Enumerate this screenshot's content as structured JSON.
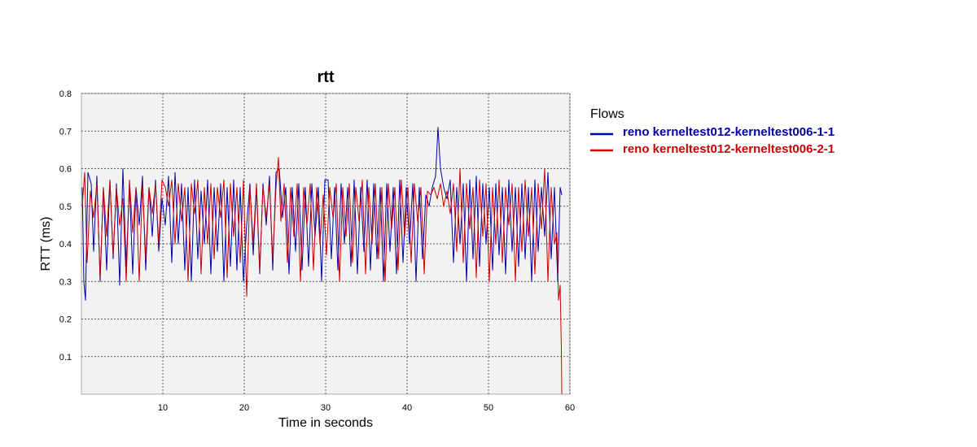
{
  "chart_data": {
    "type": "line",
    "title": "rtt",
    "xlabel": "Time in seconds",
    "ylabel": "RTT (ms)",
    "xlim": [
      0,
      60
    ],
    "ylim": [
      0,
      0.8
    ],
    "x_ticks": [
      10,
      20,
      30,
      40,
      50,
      60
    ],
    "y_ticks": [
      0.1,
      0.2,
      0.3,
      0.4,
      0.5,
      0.6,
      0.7,
      0.8
    ],
    "grid": true,
    "legend": {
      "title": "Flows",
      "placement": "right"
    },
    "series": [
      {
        "name": "reno kerneltest012-kerneltest006-1-1",
        "color": "#0000aa",
        "points": [
          [
            0.1,
            0.55
          ],
          [
            0.3,
            0.3
          ],
          [
            0.5,
            0.25
          ],
          [
            0.8,
            0.59
          ],
          [
            1.2,
            0.56
          ],
          [
            1.5,
            0.38
          ],
          [
            1.9,
            0.58
          ],
          [
            2.3,
            0.3
          ],
          [
            2.7,
            0.55
          ],
          [
            3.1,
            0.33
          ],
          [
            3.5,
            0.57
          ],
          [
            3.9,
            0.36
          ],
          [
            4.3,
            0.56
          ],
          [
            4.7,
            0.29
          ],
          [
            5.1,
            0.6
          ],
          [
            5.5,
            0.34
          ],
          [
            5.9,
            0.56
          ],
          [
            6.3,
            0.32
          ],
          [
            6.7,
            0.55
          ],
          [
            7.1,
            0.45
          ],
          [
            7.5,
            0.58
          ],
          [
            7.9,
            0.33
          ],
          [
            8.3,
            0.55
          ],
          [
            8.7,
            0.42
          ],
          [
            9.1,
            0.57
          ],
          [
            9.5,
            0.38
          ],
          [
            9.9,
            0.52
          ],
          [
            10.3,
            0.45
          ],
          [
            10.7,
            0.58
          ],
          [
            11.1,
            0.35
          ],
          [
            11.5,
            0.59
          ],
          [
            11.9,
            0.4
          ],
          [
            12.3,
            0.56
          ],
          [
            12.7,
            0.33
          ],
          [
            13.1,
            0.55
          ],
          [
            13.5,
            0.3
          ],
          [
            13.9,
            0.57
          ],
          [
            14.3,
            0.36
          ],
          [
            14.7,
            0.54
          ],
          [
            15.1,
            0.4
          ],
          [
            15.5,
            0.57
          ],
          [
            15.9,
            0.32
          ],
          [
            16.3,
            0.55
          ],
          [
            16.7,
            0.38
          ],
          [
            17.1,
            0.56
          ],
          [
            17.5,
            0.3
          ],
          [
            17.9,
            0.55
          ],
          [
            18.3,
            0.34
          ],
          [
            18.7,
            0.57
          ],
          [
            19.1,
            0.33
          ],
          [
            19.5,
            0.55
          ],
          [
            19.9,
            0.3
          ],
          [
            20.3,
            0.45
          ],
          [
            20.7,
            0.56
          ],
          [
            21.1,
            0.37
          ],
          [
            21.5,
            0.55
          ],
          [
            21.9,
            0.32
          ],
          [
            22.3,
            0.56
          ],
          [
            22.7,
            0.45
          ],
          [
            23.1,
            0.58
          ],
          [
            23.5,
            0.33
          ],
          [
            23.9,
            0.59
          ],
          [
            24.3,
            0.6
          ],
          [
            24.7,
            0.47
          ],
          [
            25.1,
            0.55
          ],
          [
            25.5,
            0.32
          ],
          [
            25.9,
            0.55
          ],
          [
            26.3,
            0.38
          ],
          [
            26.7,
            0.56
          ],
          [
            27.1,
            0.33
          ],
          [
            27.5,
            0.55
          ],
          [
            27.9,
            0.34
          ],
          [
            28.3,
            0.56
          ],
          [
            28.7,
            0.42
          ],
          [
            29.1,
            0.55
          ],
          [
            29.5,
            0.3
          ],
          [
            29.9,
            0.57
          ],
          [
            30.3,
            0.57
          ],
          [
            30.7,
            0.36
          ],
          [
            31.1,
            0.55
          ],
          [
            31.5,
            0.33
          ],
          [
            31.9,
            0.56
          ],
          [
            32.3,
            0.4
          ],
          [
            32.7,
            0.55
          ],
          [
            33.1,
            0.34
          ],
          [
            33.5,
            0.57
          ],
          [
            33.9,
            0.32
          ],
          [
            34.3,
            0.55
          ],
          [
            34.7,
            0.38
          ],
          [
            35.1,
            0.57
          ],
          [
            35.5,
            0.33
          ],
          [
            35.9,
            0.56
          ],
          [
            36.3,
            0.36
          ],
          [
            36.7,
            0.55
          ],
          [
            37.1,
            0.3
          ],
          [
            37.5,
            0.56
          ],
          [
            37.9,
            0.38
          ],
          [
            38.3,
            0.55
          ],
          [
            38.7,
            0.32
          ],
          [
            39.1,
            0.57
          ],
          [
            39.5,
            0.35
          ],
          [
            39.9,
            0.55
          ],
          [
            40.3,
            0.4
          ],
          [
            40.7,
            0.56
          ],
          [
            41.1,
            0.3
          ],
          [
            41.5,
            0.55
          ],
          [
            41.9,
            0.36
          ],
          [
            42.3,
            0.53
          ],
          [
            42.7,
            0.5
          ],
          [
            43.1,
            0.55
          ],
          [
            43.5,
            0.58
          ],
          [
            43.8,
            0.71
          ],
          [
            44.1,
            0.6
          ],
          [
            44.5,
            0.55
          ],
          [
            44.9,
            0.52
          ],
          [
            45.3,
            0.57
          ],
          [
            45.7,
            0.35
          ],
          [
            46.1,
            0.55
          ],
          [
            46.5,
            0.4
          ],
          [
            46.9,
            0.56
          ],
          [
            47.3,
            0.3
          ],
          [
            47.7,
            0.57
          ],
          [
            48.1,
            0.36
          ],
          [
            48.5,
            0.58
          ],
          [
            48.9,
            0.34
          ],
          [
            49.3,
            0.56
          ],
          [
            49.7,
            0.4
          ],
          [
            50.1,
            0.55
          ],
          [
            50.5,
            0.33
          ],
          [
            50.9,
            0.56
          ],
          [
            51.3,
            0.37
          ],
          [
            51.7,
            0.55
          ],
          [
            52.1,
            0.32
          ],
          [
            52.5,
            0.57
          ],
          [
            52.9,
            0.38
          ],
          [
            53.3,
            0.55
          ],
          [
            53.7,
            0.34
          ],
          [
            54.1,
            0.56
          ],
          [
            54.5,
            0.36
          ],
          [
            54.9,
            0.55
          ],
          [
            55.3,
            0.3
          ],
          [
            55.7,
            0.57
          ],
          [
            56.1,
            0.38
          ],
          [
            56.5,
            0.55
          ],
          [
            56.9,
            0.42
          ],
          [
            57.3,
            0.59
          ],
          [
            57.7,
            0.36
          ],
          [
            58.1,
            0.55
          ],
          [
            58.5,
            0.3
          ],
          [
            58.8,
            0.55
          ],
          [
            59.0,
            0.53
          ]
        ]
      },
      {
        "name": "reno kerneltest012-kerneltest006-2-1",
        "color": "#cc0000",
        "points": [
          [
            0.1,
            0.5
          ],
          [
            0.4,
            0.59
          ],
          [
            0.7,
            0.35
          ],
          [
            1.1,
            0.54
          ],
          [
            1.5,
            0.47
          ],
          [
            1.9,
            0.56
          ],
          [
            2.3,
            0.31
          ],
          [
            2.7,
            0.55
          ],
          [
            3.1,
            0.42
          ],
          [
            3.5,
            0.57
          ],
          [
            3.9,
            0.37
          ],
          [
            4.3,
            0.55
          ],
          [
            4.7,
            0.45
          ],
          [
            5.1,
            0.52
          ],
          [
            5.5,
            0.3
          ],
          [
            5.9,
            0.57
          ],
          [
            6.3,
            0.43
          ],
          [
            6.7,
            0.55
          ],
          [
            7.1,
            0.3
          ],
          [
            7.5,
            0.56
          ],
          [
            7.9,
            0.36
          ],
          [
            8.3,
            0.55
          ],
          [
            8.7,
            0.48
          ],
          [
            9.1,
            0.56
          ],
          [
            9.5,
            0.4
          ],
          [
            9.9,
            0.57
          ],
          [
            10.3,
            0.55
          ],
          [
            10.7,
            0.5
          ],
          [
            11.1,
            0.57
          ],
          [
            11.5,
            0.4
          ],
          [
            11.9,
            0.56
          ],
          [
            12.3,
            0.46
          ],
          [
            12.7,
            0.55
          ],
          [
            13.1,
            0.3
          ],
          [
            13.5,
            0.56
          ],
          [
            13.9,
            0.48
          ],
          [
            14.3,
            0.57
          ],
          [
            14.7,
            0.32
          ],
          [
            15.1,
            0.55
          ],
          [
            15.5,
            0.4
          ],
          [
            15.9,
            0.56
          ],
          [
            16.3,
            0.36
          ],
          [
            16.7,
            0.55
          ],
          [
            17.1,
            0.47
          ],
          [
            17.5,
            0.57
          ],
          [
            17.9,
            0.31
          ],
          [
            18.3,
            0.56
          ],
          [
            18.7,
            0.42
          ],
          [
            19.1,
            0.55
          ],
          [
            19.5,
            0.35
          ],
          [
            19.9,
            0.57
          ],
          [
            20.3,
            0.26
          ],
          [
            20.7,
            0.55
          ],
          [
            21.1,
            0.4
          ],
          [
            21.5,
            0.56
          ],
          [
            21.9,
            0.33
          ],
          [
            22.3,
            0.55
          ],
          [
            22.7,
            0.47
          ],
          [
            23.1,
            0.56
          ],
          [
            23.5,
            0.36
          ],
          [
            23.9,
            0.55
          ],
          [
            24.2,
            0.63
          ],
          [
            24.5,
            0.46
          ],
          [
            24.9,
            0.56
          ],
          [
            25.3,
            0.35
          ],
          [
            25.7,
            0.55
          ],
          [
            26.1,
            0.42
          ],
          [
            26.5,
            0.56
          ],
          [
            26.9,
            0.3
          ],
          [
            27.3,
            0.55
          ],
          [
            27.7,
            0.45
          ],
          [
            28.1,
            0.56
          ],
          [
            28.5,
            0.33
          ],
          [
            28.9,
            0.55
          ],
          [
            29.3,
            0.4
          ],
          [
            29.7,
            0.53
          ],
          [
            30.1,
            0.37
          ],
          [
            30.5,
            0.55
          ],
          [
            30.9,
            0.47
          ],
          [
            31.3,
            0.56
          ],
          [
            31.7,
            0.3
          ],
          [
            32.1,
            0.55
          ],
          [
            32.5,
            0.42
          ],
          [
            32.9,
            0.56
          ],
          [
            33.3,
            0.35
          ],
          [
            33.7,
            0.55
          ],
          [
            34.1,
            0.46
          ],
          [
            34.5,
            0.57
          ],
          [
            34.9,
            0.32
          ],
          [
            35.3,
            0.55
          ],
          [
            35.7,
            0.4
          ],
          [
            36.1,
            0.56
          ],
          [
            36.5,
            0.36
          ],
          [
            36.9,
            0.55
          ],
          [
            37.3,
            0.3
          ],
          [
            37.7,
            0.56
          ],
          [
            38.1,
            0.44
          ],
          [
            38.5,
            0.55
          ],
          [
            38.9,
            0.33
          ],
          [
            39.3,
            0.57
          ],
          [
            39.7,
            0.42
          ],
          [
            40.1,
            0.55
          ],
          [
            40.5,
            0.35
          ],
          [
            40.9,
            0.56
          ],
          [
            41.3,
            0.46
          ],
          [
            41.7,
            0.55
          ],
          [
            42.1,
            0.32
          ],
          [
            42.5,
            0.54
          ],
          [
            42.9,
            0.53
          ],
          [
            43.3,
            0.55
          ],
          [
            43.7,
            0.52
          ],
          [
            44.1,
            0.56
          ],
          [
            44.5,
            0.5
          ],
          [
            44.9,
            0.54
          ],
          [
            45.3,
            0.48
          ],
          [
            45.7,
            0.56
          ],
          [
            46.1,
            0.38
          ],
          [
            46.5,
            0.6
          ],
          [
            46.9,
            0.35
          ],
          [
            47.3,
            0.56
          ],
          [
            47.7,
            0.44
          ],
          [
            48.1,
            0.55
          ],
          [
            48.5,
            0.31
          ],
          [
            48.9,
            0.57
          ],
          [
            49.3,
            0.42
          ],
          [
            49.7,
            0.56
          ],
          [
            50.1,
            0.3
          ],
          [
            50.5,
            0.55
          ],
          [
            50.9,
            0.4
          ],
          [
            51.3,
            0.57
          ],
          [
            51.7,
            0.35
          ],
          [
            52.1,
            0.55
          ],
          [
            52.5,
            0.45
          ],
          [
            52.9,
            0.56
          ],
          [
            53.3,
            0.3
          ],
          [
            53.7,
            0.55
          ],
          [
            54.1,
            0.38
          ],
          [
            54.5,
            0.57
          ],
          [
            54.9,
            0.42
          ],
          [
            55.3,
            0.55
          ],
          [
            55.7,
            0.32
          ],
          [
            56.1,
            0.56
          ],
          [
            56.5,
            0.44
          ],
          [
            56.9,
            0.6
          ],
          [
            57.3,
            0.3
          ],
          [
            57.7,
            0.55
          ],
          [
            58.1,
            0.4
          ],
          [
            58.4,
            0.43
          ],
          [
            58.6,
            0.25
          ],
          [
            58.8,
            0.29
          ],
          [
            58.95,
            0.12
          ],
          [
            59.0,
            0.0
          ]
        ]
      }
    ]
  }
}
